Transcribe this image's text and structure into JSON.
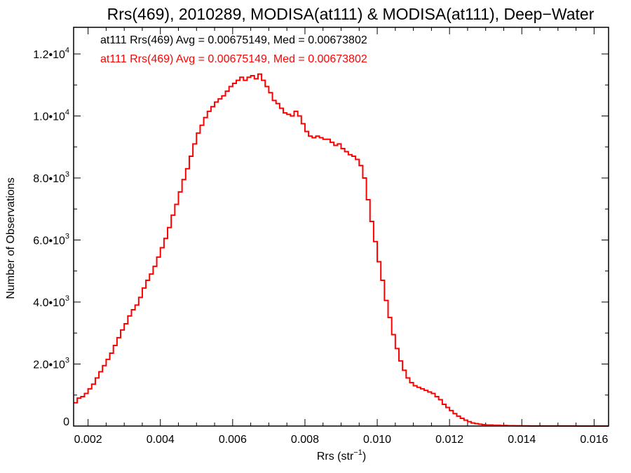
{
  "chart_data": {
    "type": "histogram",
    "title": "Rrs(469), 2010289, MODISA(at111) & MODISA(at111), Deep−Water",
    "xlabel": {
      "main": "Rrs (str",
      "sup": "−1",
      "end": ")"
    },
    "ylabel": "Number of Observations",
    "xlim": [
      0.0016,
      0.0164
    ],
    "ylim": [
      0,
      12000
    ],
    "x_ticks": [
      {
        "value": 0.002,
        "label": "0.002"
      },
      {
        "value": 0.004,
        "label": "0.004"
      },
      {
        "value": 0.006,
        "label": "0.006"
      },
      {
        "value": 0.008,
        "label": "0.008"
      },
      {
        "value": 0.01,
        "label": "0.010"
      },
      {
        "value": 0.012,
        "label": "0.012"
      },
      {
        "value": 0.014,
        "label": "0.014"
      },
      {
        "value": 0.016,
        "label": "0.016"
      }
    ],
    "y_ticks": [
      {
        "value": 0,
        "mantissa": "0",
        "exp": ""
      },
      {
        "value": 2000,
        "mantissa": "2.0•10",
        "exp": "3"
      },
      {
        "value": 4000,
        "mantissa": "4.0•10",
        "exp": "3"
      },
      {
        "value": 6000,
        "mantissa": "6.0•10",
        "exp": "3"
      },
      {
        "value": 8000,
        "mantissa": "8.0•10",
        "exp": "3"
      },
      {
        "value": 10000,
        "mantissa": "1.0•10",
        "exp": "4"
      },
      {
        "value": 12000,
        "mantissa": "1.2•10",
        "exp": "4"
      }
    ],
    "stats": [
      {
        "text": "at111 Rrs(469) Avg = 0.00675149, Med = 0.00673802",
        "color": "#000000"
      },
      {
        "text": "at111 Rrs(469) Avg = 0.00675149, Med = 0.00673802",
        "color": "#ff0000"
      }
    ],
    "series": [
      {
        "color": "#ff0000",
        "points": [
          [
            0.0016,
            750
          ],
          [
            0.0017,
            900
          ],
          [
            0.0018,
            950
          ],
          [
            0.0019,
            1050
          ],
          [
            0.002,
            1200
          ],
          [
            0.0021,
            1350
          ],
          [
            0.0022,
            1550
          ],
          [
            0.0023,
            1750
          ],
          [
            0.0024,
            1950
          ],
          [
            0.0025,
            2150
          ],
          [
            0.0026,
            2350
          ],
          [
            0.0027,
            2600
          ],
          [
            0.0028,
            2850
          ],
          [
            0.0029,
            3100
          ],
          [
            0.003,
            3300
          ],
          [
            0.0031,
            3550
          ],
          [
            0.0032,
            3750
          ],
          [
            0.0033,
            3900
          ],
          [
            0.0034,
            4150
          ],
          [
            0.0035,
            4450
          ],
          [
            0.0036,
            4700
          ],
          [
            0.0037,
            4900
          ],
          [
            0.0038,
            5150
          ],
          [
            0.0039,
            5450
          ],
          [
            0.004,
            5750
          ],
          [
            0.0041,
            6050
          ],
          [
            0.0042,
            6400
          ],
          [
            0.0043,
            6800
          ],
          [
            0.0044,
            7150
          ],
          [
            0.0045,
            7550
          ],
          [
            0.0046,
            7950
          ],
          [
            0.0047,
            8300
          ],
          [
            0.0048,
            8700
          ],
          [
            0.0049,
            9100
          ],
          [
            0.005,
            9450
          ],
          [
            0.0051,
            9700
          ],
          [
            0.0052,
            9950
          ],
          [
            0.0053,
            10150
          ],
          [
            0.0054,
            10300
          ],
          [
            0.0055,
            10450
          ],
          [
            0.0056,
            10550
          ],
          [
            0.0057,
            10650
          ],
          [
            0.0058,
            10800
          ],
          [
            0.0059,
            10950
          ],
          [
            0.006,
            11050
          ],
          [
            0.0061,
            11150
          ],
          [
            0.0062,
            11250
          ],
          [
            0.0063,
            11150
          ],
          [
            0.0064,
            11250
          ],
          [
            0.0065,
            11300
          ],
          [
            0.0066,
            11200
          ],
          [
            0.0067,
            11350
          ],
          [
            0.0068,
            11150
          ],
          [
            0.0069,
            10950
          ],
          [
            0.007,
            10750
          ],
          [
            0.0071,
            10500
          ],
          [
            0.0072,
            10400
          ],
          [
            0.0073,
            10250
          ],
          [
            0.0074,
            10100
          ],
          [
            0.0075,
            10050
          ],
          [
            0.0076,
            10000
          ],
          [
            0.0077,
            10150
          ],
          [
            0.0078,
            10000
          ],
          [
            0.0079,
            9750
          ],
          [
            0.008,
            9500
          ],
          [
            0.0081,
            9350
          ],
          [
            0.0082,
            9300
          ],
          [
            0.0083,
            9350
          ],
          [
            0.0084,
            9300
          ],
          [
            0.0085,
            9250
          ],
          [
            0.0086,
            9250
          ],
          [
            0.0087,
            9150
          ],
          [
            0.0088,
            9050
          ],
          [
            0.0089,
            9100
          ],
          [
            0.009,
            8950
          ],
          [
            0.0091,
            8850
          ],
          [
            0.0092,
            8750
          ],
          [
            0.0093,
            8700
          ],
          [
            0.0094,
            8600
          ],
          [
            0.0095,
            8400
          ],
          [
            0.0096,
            8000
          ],
          [
            0.0097,
            7300
          ],
          [
            0.0098,
            6600
          ],
          [
            0.0099,
            5950
          ],
          [
            0.01,
            5300
          ],
          [
            0.0101,
            4700
          ],
          [
            0.0102,
            4050
          ],
          [
            0.0103,
            3500
          ],
          [
            0.0104,
            2950
          ],
          [
            0.0105,
            2500
          ],
          [
            0.0106,
            2100
          ],
          [
            0.0107,
            1800
          ],
          [
            0.0108,
            1550
          ],
          [
            0.0109,
            1400
          ],
          [
            0.011,
            1300
          ],
          [
            0.0111,
            1250
          ],
          [
            0.0112,
            1200
          ],
          [
            0.0113,
            1150
          ],
          [
            0.0114,
            1100
          ],
          [
            0.0115,
            1050
          ],
          [
            0.0116,
            950
          ],
          [
            0.0117,
            850
          ],
          [
            0.0118,
            700
          ],
          [
            0.0119,
            600
          ],
          [
            0.012,
            500
          ],
          [
            0.0121,
            400
          ],
          [
            0.0122,
            320
          ],
          [
            0.0123,
            250
          ],
          [
            0.0124,
            190
          ],
          [
            0.0125,
            140
          ],
          [
            0.0126,
            100
          ],
          [
            0.0127,
            80
          ],
          [
            0.0128,
            60
          ],
          [
            0.0129,
            45
          ],
          [
            0.013,
            35
          ],
          [
            0.0132,
            25
          ],
          [
            0.0134,
            18
          ],
          [
            0.0136,
            12
          ],
          [
            0.0138,
            8
          ],
          [
            0.014,
            6
          ],
          [
            0.0142,
            4
          ],
          [
            0.0145,
            3
          ],
          [
            0.015,
            2
          ],
          [
            0.0155,
            1
          ],
          [
            0.016,
            1
          ]
        ]
      }
    ]
  }
}
